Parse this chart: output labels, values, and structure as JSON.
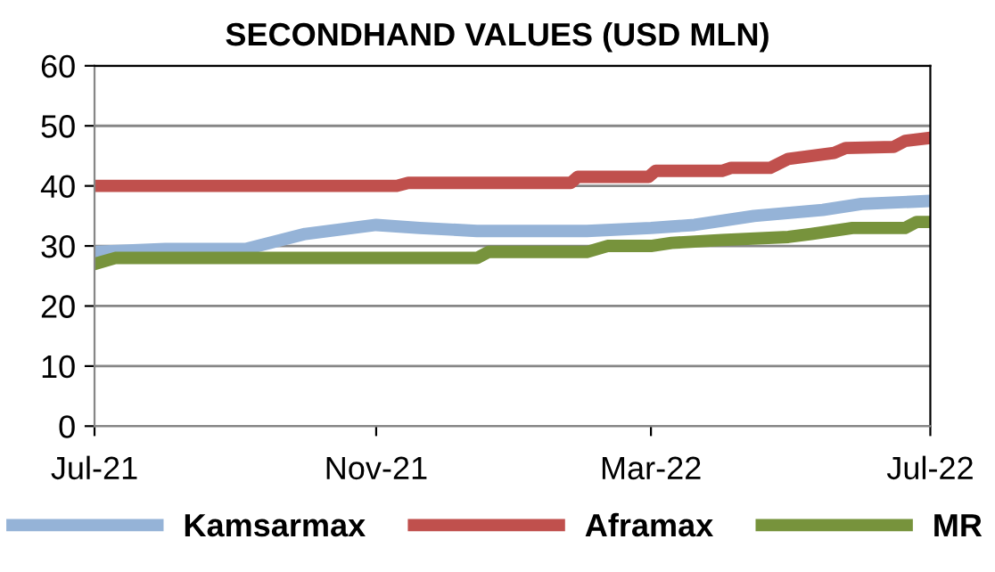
{
  "chart_data": {
    "type": "line",
    "title": "SECONDHAND VALUES (USD MLN)",
    "xlim": [
      "2021-07-01",
      "2022-07-01"
    ],
    "ylim": [
      0,
      60
    ],
    "yticks": [
      0,
      10,
      20,
      30,
      40,
      50,
      60
    ],
    "xticks": [
      {
        "value": "2021-07-01",
        "label": "Jul-21"
      },
      {
        "value": "2021-11-01",
        "label": "Nov-21"
      },
      {
        "value": "2022-03-01",
        "label": "Mar-22"
      },
      {
        "value": "2022-07-01",
        "label": "Jul-22"
      }
    ],
    "grid": "y",
    "legend": "bottom",
    "marker": "none",
    "line_style": "solid",
    "series": [
      {
        "name": "Kamsarmax",
        "color": "#95b3d7",
        "x": [
          "2021-07-01",
          "2021-08-01",
          "2021-09-05",
          "2021-10-01",
          "2021-11-01",
          "2021-11-20",
          "2021-12-15",
          "2022-02-01",
          "2022-03-01",
          "2022-03-20",
          "2022-04-15",
          "2022-05-15",
          "2022-06-01",
          "2022-07-01"
        ],
        "values": [
          29,
          29.5,
          29.5,
          32,
          33.5,
          33,
          32.5,
          32.5,
          33,
          33.5,
          35,
          36,
          37,
          37.5
        ]
      },
      {
        "name": "Aframax",
        "color": "#c0504d",
        "x": [
          "2021-07-01",
          "2021-11-10",
          "2021-11-15",
          "2022-01-25",
          "2022-01-28",
          "2022-02-28",
          "2022-03-03",
          "2022-04-01",
          "2022-04-05",
          "2022-04-22",
          "2022-04-30",
          "2022-05-20",
          "2022-05-25",
          "2022-06-15",
          "2022-06-20",
          "2022-07-01"
        ],
        "values": [
          40,
          40,
          40.5,
          40.5,
          41.5,
          41.5,
          42.5,
          42.5,
          43,
          43,
          44.5,
          45.5,
          46.3,
          46.5,
          47.5,
          48
        ]
      },
      {
        "name": "MR",
        "color": "#77933c",
        "x": [
          "2021-07-01",
          "2021-07-10",
          "2021-12-15",
          "2021-12-20",
          "2022-02-01",
          "2022-02-10",
          "2022-03-01",
          "2022-03-10",
          "2022-04-01",
          "2022-04-30",
          "2022-05-10",
          "2022-05-28",
          "2022-06-20",
          "2022-06-25",
          "2022-07-01"
        ],
        "values": [
          27,
          28,
          28,
          29,
          29,
          30,
          30,
          30.5,
          31,
          31.5,
          32,
          33,
          33,
          34,
          34
        ]
      }
    ]
  }
}
